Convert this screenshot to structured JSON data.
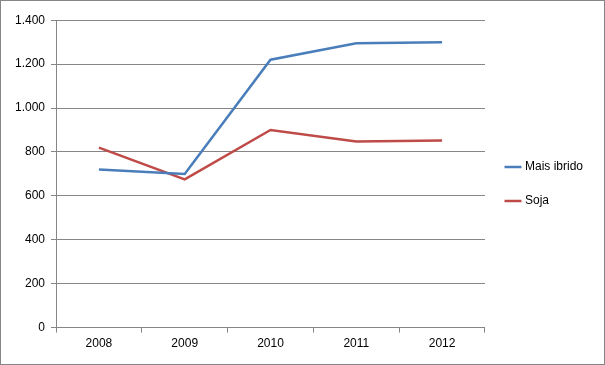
{
  "chart_data": {
    "type": "line",
    "categories": [
      "2008",
      "2009",
      "2010",
      "2011",
      "2012"
    ],
    "series": [
      {
        "name": "Mais ibrido",
        "color": "#4A7EBB",
        "values": [
          720,
          700,
          1220,
          1295,
          1300
        ]
      },
      {
        "name": "Soja",
        "color": "#BE4B48",
        "values": [
          820,
          675,
          900,
          848,
          852
        ]
      }
    ],
    "ylim": [
      0,
      1400
    ],
    "yticks": [
      0,
      200,
      400,
      600,
      800,
      {
        "value": 1000,
        "label": "1.000"
      },
      {
        "value": 1200,
        "label": "1.200"
      },
      {
        "value": 1400,
        "label": "1.400"
      }
    ],
    "grid": true,
    "legend": "right"
  }
}
